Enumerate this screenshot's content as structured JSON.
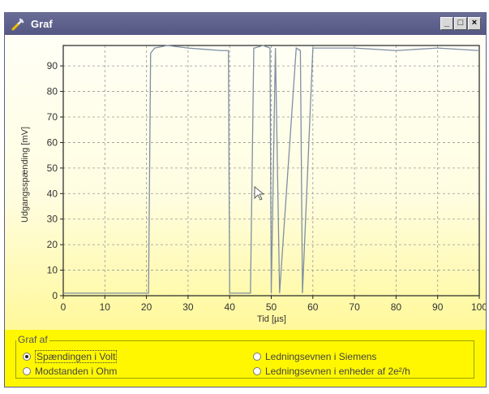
{
  "window": {
    "title": "Graf",
    "icon": "wrench-icon"
  },
  "titlebar_buttons": {
    "minimize": "_",
    "maximize": "□",
    "close": "×"
  },
  "chart_data": {
    "type": "line",
    "xlabel": "Tid [µs]",
    "ylabel": "Udgangsspænding [mV]",
    "xlim": [
      0,
      100
    ],
    "ylim": [
      0,
      98
    ],
    "x_ticks": [
      "0",
      "10",
      "20",
      "30",
      "40",
      "50",
      "60",
      "70",
      "80",
      "90",
      "100"
    ],
    "y_ticks": [
      "0",
      "10",
      "20",
      "30",
      "40",
      "50",
      "60",
      "70",
      "80",
      "90"
    ],
    "grid": true,
    "series": [
      {
        "x": [
          0,
          20.5,
          21,
          22,
          25,
          30,
          38,
          39.7,
          40,
          45,
          45.8,
          46,
          48,
          49.7,
          50,
          51,
          52,
          56,
          57,
          57.5,
          60,
          70,
          80,
          90,
          100
        ],
        "y": [
          1,
          1,
          95,
          97,
          98,
          97,
          96,
          96,
          1,
          1,
          97,
          97,
          98,
          97,
          1,
          97,
          1,
          97,
          96,
          1,
          97,
          97,
          96,
          97,
          96
        ]
      }
    ]
  },
  "graph_options": {
    "group_label": "Graf af",
    "options": [
      {
        "label": "Spændingen i Volt",
        "selected": true
      },
      {
        "label": "Modstanden i Ohm",
        "selected": false
      },
      {
        "label": "Ledningsevnen i Siemens",
        "selected": false
      },
      {
        "label": "Ledningsevnen i enheder af 2e²/h",
        "selected": false
      }
    ]
  },
  "colors": {
    "titlebar": "#5a5c88",
    "line": "#7f8fa3",
    "panel": "#fff700"
  }
}
